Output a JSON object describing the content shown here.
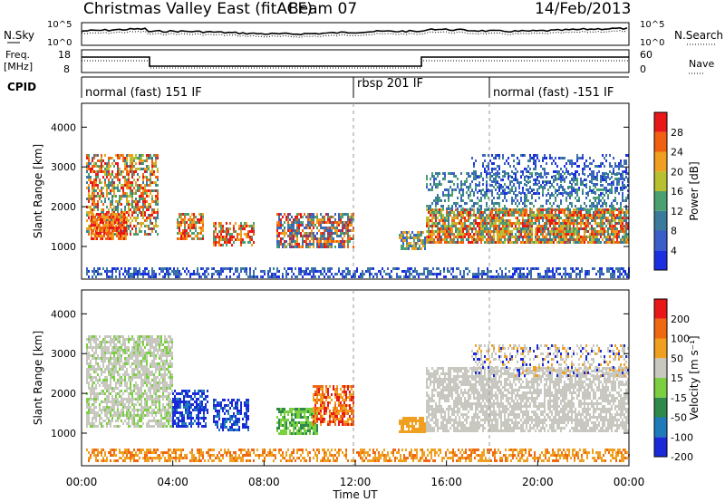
{
  "header": {
    "title": "Christmas Valley East (fitACF)",
    "beam": "Beam 07",
    "date": "14/Feb/2013"
  },
  "top_panels": {
    "noise": {
      "left_label": "N.Sky",
      "left_ticks": [
        "10^5",
        "10^0"
      ],
      "right_ticks": [
        "10^5",
        "10^0"
      ],
      "right_label": "N.Search"
    },
    "freq": {
      "left_label_1": "Freq.",
      "left_label_2": "[MHz]",
      "left_ticks": [
        "18",
        "8"
      ],
      "right_ticks": [
        "60",
        "0"
      ],
      "right_label": "Nave"
    },
    "cpid": {
      "label": "CPID",
      "segments": [
        {
          "start": 0,
          "text": "normal (fast) 151 IF"
        },
        {
          "start": 12,
          "text": "rbsp 201 IF"
        },
        {
          "start": 18,
          "text": "normal (fast) -151 IF"
        }
      ]
    }
  },
  "chart_data": [
    {
      "type": "heatmap",
      "name": "power",
      "ylabel": "Slant Range [km]",
      "ylim": [
        180,
        4600
      ],
      "xlim": [
        0,
        24
      ],
      "yticks": [
        1000,
        2000,
        3000,
        4000
      ],
      "colorbar": {
        "label": "Power [dB]",
        "ticks": [
          "4",
          "8",
          "12",
          "16",
          "20",
          "24",
          "28"
        ],
        "colors": [
          "#1a30e0",
          "#3a5fc8",
          "#3a7a9a",
          "#4aa070",
          "#b8c030",
          "#f0a020",
          "#f06010",
          "#e81818"
        ]
      }
    },
    {
      "type": "heatmap",
      "name": "velocity",
      "ylabel": "Slant Range [km]",
      "ylim": [
        180,
        4600
      ],
      "xlim": [
        0,
        24
      ],
      "yticks": [
        1000,
        2000,
        3000,
        4000
      ],
      "colorbar": {
        "label": "Velocity [m s⁻¹]",
        "ticks": [
          "200",
          "100",
          "50",
          "15",
          "-15",
          "-50",
          "-100",
          "-200"
        ],
        "colors": [
          "#1a2ad8",
          "#1e7ab8",
          "#2e8a4a",
          "#7ad040",
          "#c8c8c0",
          "#f0a020",
          "#f06810",
          "#e81818"
        ]
      }
    }
  ],
  "x_axis": {
    "ticks": [
      "00:00",
      "04:00",
      "08:00",
      "12:00",
      "16:00",
      "20:00",
      "00:00"
    ],
    "label": "Time UT"
  }
}
